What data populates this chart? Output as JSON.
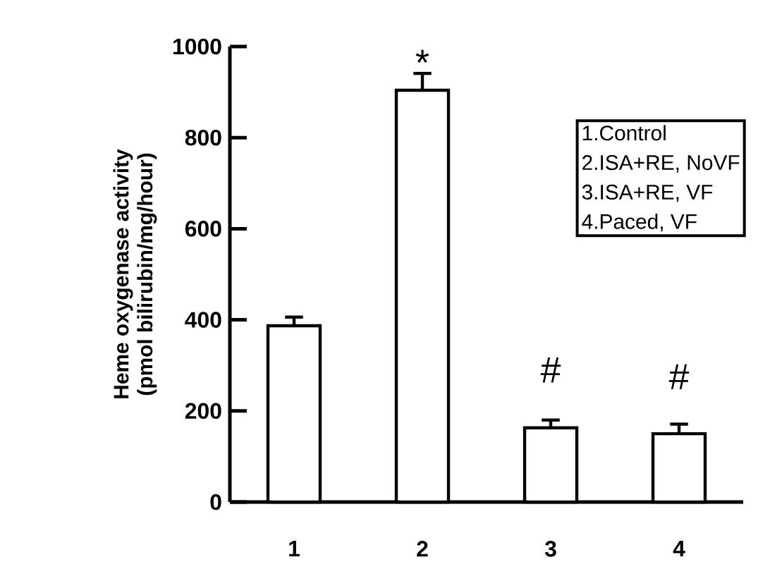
{
  "chart_data": {
    "type": "bar",
    "ylabel": "Heme oxygenase activity\n(pmol bilirubin/mg/hour)",
    "categories": [
      "1",
      "2",
      "3",
      "4"
    ],
    "values": [
      387,
      904,
      163,
      150
    ],
    "errors": [
      [
        387,
        406
      ],
      [
        904,
        941
      ],
      [
        163,
        180
      ],
      [
        150,
        171
      ]
    ],
    "color": "#ffffff",
    "ylim": [
      0,
      1000
    ],
    "yticks": [
      0,
      200,
      400,
      600,
      800,
      1000
    ],
    "grid": false,
    "annotations": [
      "*",
      "#",
      "#",
      "1.Control",
      "2.ISA+RE, NoVF",
      "3.ISA+RE, VF",
      "4.Paced, VF"
    ]
  }
}
